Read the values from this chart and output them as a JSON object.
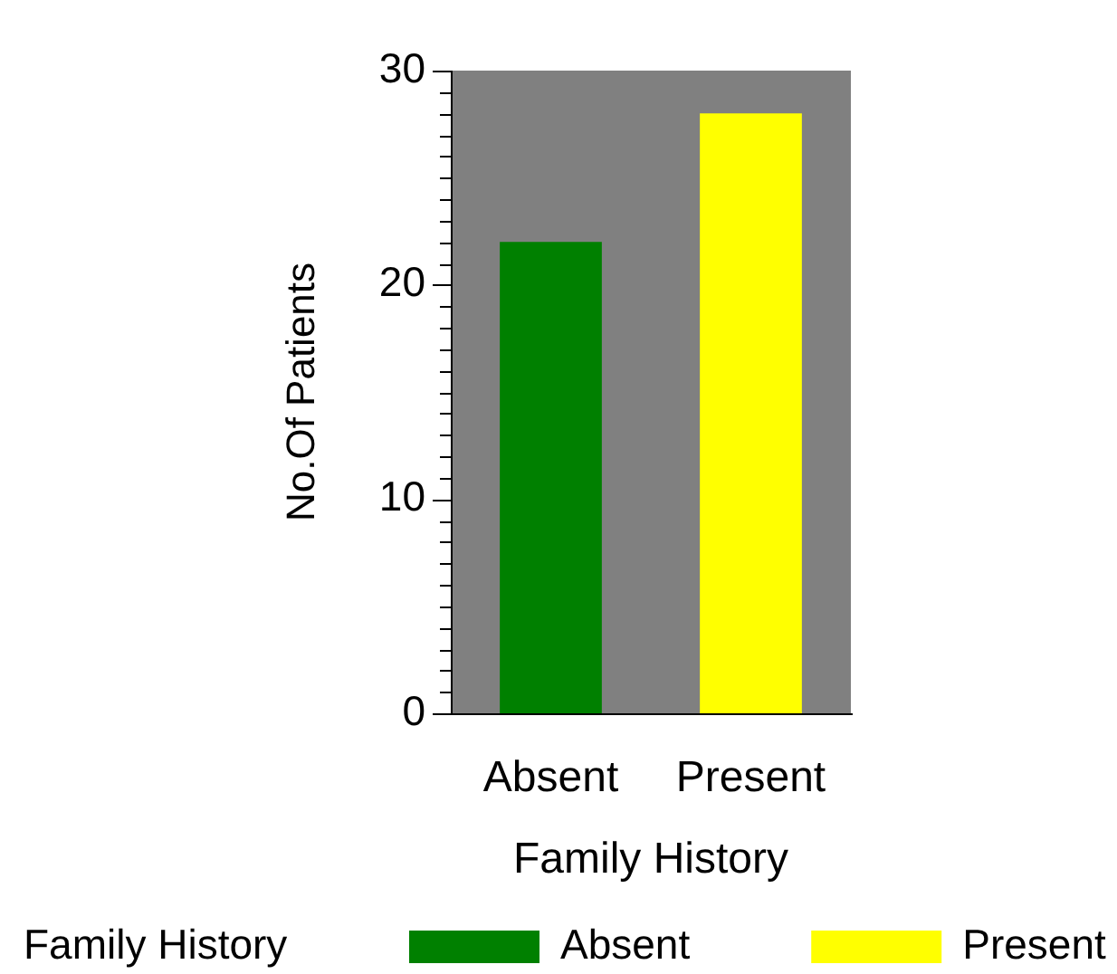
{
  "chart_data": {
    "type": "bar",
    "categories": [
      "Absent",
      "Present"
    ],
    "series": [
      {
        "name": "Absent",
        "color": "#008000",
        "values": [
          22,
          null
        ]
      },
      {
        "name": "Present",
        "color": "#ffff00",
        "values": [
          null,
          28
        ]
      }
    ],
    "xlabel": "Family History",
    "ylabel": "No.Of Patients",
    "legend_title": "Family History",
    "legend": "bottom",
    "grid": false,
    "ylim": [
      0,
      30
    ],
    "yticks": [
      0,
      {
        "value": 1,
        "label": null
      },
      {
        "value": 2,
        "label": null
      },
      {
        "value": 3,
        "label": null
      },
      {
        "value": 4,
        "label": null
      },
      {
        "value": 5,
        "label": null
      },
      {
        "value": 6,
        "label": null
      },
      {
        "value": 7,
        "label": null
      },
      {
        "value": 8,
        "label": null
      },
      {
        "value": 9,
        "label": null
      },
      10,
      {
        "value": 11,
        "label": null
      },
      {
        "value": 12,
        "label": null
      },
      {
        "value": 13,
        "label": null
      },
      {
        "value": 14,
        "label": null
      },
      {
        "value": 15,
        "label": null
      },
      {
        "value": 16,
        "label": null
      },
      {
        "value": 17,
        "label": null
      },
      {
        "value": 18,
        "label": null
      },
      {
        "value": 19,
        "label": null
      },
      20,
      {
        "value": 21,
        "label": null
      },
      {
        "value": 22,
        "label": null
      },
      {
        "value": 23,
        "label": null
      },
      {
        "value": 24,
        "label": null
      },
      {
        "value": 25,
        "label": null
      },
      {
        "value": 26,
        "label": null
      },
      {
        "value": 27,
        "label": null
      },
      {
        "value": 28,
        "label": null
      },
      {
        "value": 29,
        "label": null
      },
      30
    ]
  }
}
